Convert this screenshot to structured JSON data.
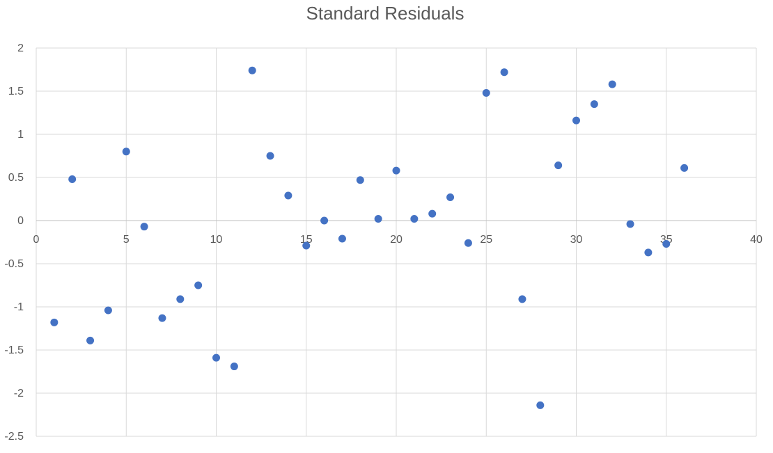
{
  "chart_data": {
    "type": "scatter",
    "title": "Standard Residuals",
    "xlabel": "",
    "ylabel": "",
    "xlim": [
      0,
      40
    ],
    "ylim": [
      -2.5,
      2
    ],
    "x_ticks": [
      0,
      5,
      10,
      15,
      20,
      25,
      30,
      35,
      40
    ],
    "y_ticks": [
      2,
      1.5,
      1,
      0.5,
      0,
      -0.5,
      -1,
      -1.5,
      -2,
      -2.5
    ],
    "grid": true,
    "legend": "none",
    "marker_color": "#4472C4",
    "series": [
      {
        "x": [
          1,
          2,
          3,
          4,
          5,
          6,
          7,
          8,
          9,
          10,
          11,
          12,
          13,
          14,
          15,
          16,
          17,
          18,
          19,
          20,
          21,
          22,
          23,
          24,
          25,
          26,
          27,
          28,
          29,
          30,
          31,
          32,
          33,
          34,
          35,
          36
        ],
        "y": [
          -1.18,
          0.48,
          -1.39,
          -1.04,
          0.8,
          -0.07,
          -1.13,
          -0.91,
          -0.75,
          -1.59,
          -1.69,
          1.74,
          0.75,
          0.29,
          -0.29,
          0.0,
          -0.21,
          0.47,
          0.02,
          0.58,
          0.02,
          0.08,
          0.27,
          -0.26,
          1.48,
          1.72,
          -0.91,
          -2.14,
          0.64,
          1.16,
          1.35,
          1.58,
          -0.04,
          -0.37,
          -0.27,
          0.61
        ]
      }
    ]
  }
}
